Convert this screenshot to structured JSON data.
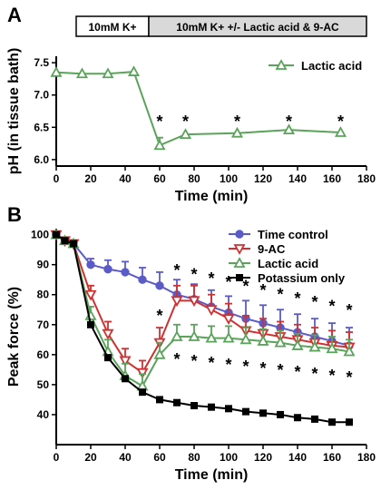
{
  "panel_labels": {
    "a": "A",
    "b": "B"
  },
  "condition_bar": {
    "left": "10mM K+",
    "right": "10mM K+  +/- Lactic acid & 9-AC"
  },
  "chart_data": [
    {
      "type": "line",
      "panel": "A",
      "xlabel": "Time (min)",
      "ylabel": "pH (in tissue bath)",
      "xlim": [
        0,
        180
      ],
      "ylim": [
        5.9,
        7.6
      ],
      "xticks": [
        0,
        20,
        40,
        60,
        80,
        100,
        120,
        140,
        160,
        180
      ],
      "yticks": [
        6.0,
        6.5,
        7.0,
        7.5
      ],
      "ytick_labels": [
        "6.0",
        "6.5",
        "7.0",
        "7.5"
      ],
      "legend_position": "top-right",
      "grid": false,
      "series": [
        {
          "name": "Lactic acid",
          "color": "#5aa35a",
          "marker": "triangle-open",
          "x": [
            0,
            15,
            30,
            45,
            60,
            75,
            105,
            135,
            165
          ],
          "y": [
            7.35,
            7.33,
            7.33,
            7.36,
            6.22,
            6.39,
            6.41,
            6.46,
            6.42
          ],
          "err": [
            0,
            0,
            0,
            0,
            0.12,
            0,
            0,
            0,
            0
          ]
        }
      ],
      "significance_x": [
        60,
        75,
        105,
        135,
        165
      ],
      "significance_mark": "*"
    },
    {
      "type": "line",
      "panel": "B",
      "xlabel": "Time (min)",
      "ylabel": "Peak force (%)",
      "xlim": [
        0,
        180
      ],
      "ylim": [
        30,
        102
      ],
      "xticks": [
        0,
        20,
        40,
        60,
        80,
        100,
        120,
        140,
        160,
        180
      ],
      "yticks": [
        40,
        50,
        60,
        70,
        80,
        90,
        100
      ],
      "legend_position": "top-right",
      "grid": false,
      "series": [
        {
          "name": "Time control",
          "color": "#5b5bc8",
          "marker": "circle-filled",
          "x": [
            0,
            5,
            10,
            20,
            30,
            40,
            50,
            60,
            70,
            80,
            90,
            100,
            110,
            120,
            130,
            140,
            150,
            160,
            170
          ],
          "y": [
            100,
            98,
            97,
            90,
            88.5,
            87.5,
            85,
            83,
            80,
            78.5,
            76,
            74,
            72,
            70.5,
            69,
            67.5,
            66,
            64.5,
            63
          ],
          "err": [
            0,
            0,
            0,
            2,
            3,
            3.5,
            4,
            4.5,
            5,
            5,
            5.5,
            5.5,
            6,
            6,
            6,
            6,
            6,
            6,
            6
          ]
        },
        {
          "name": "9-AC",
          "color": "#d03030",
          "marker": "triangle-down-open",
          "x": [
            0,
            5,
            10,
            20,
            30,
            40,
            50,
            60,
            70,
            80,
            90,
            100,
            110,
            120,
            130,
            140,
            150,
            160,
            170
          ],
          "y": [
            100,
            98,
            97,
            80,
            67,
            58,
            54,
            64,
            78,
            78,
            75,
            72,
            68,
            67,
            66,
            65,
            64,
            63,
            62.5
          ],
          "err": [
            0,
            0,
            0,
            3,
            4,
            4,
            4,
            5,
            5,
            5,
            5,
            5,
            5,
            5,
            5,
            5,
            5,
            5,
            5
          ]
        },
        {
          "name": "Lactic acid",
          "color": "#5aa35a",
          "marker": "triangle-open",
          "x": [
            0,
            5,
            10,
            20,
            30,
            40,
            50,
            60,
            70,
            80,
            90,
            100,
            110,
            120,
            130,
            140,
            150,
            160,
            170
          ],
          "y": [
            100,
            98,
            97,
            73,
            61,
            53,
            49.5,
            60,
            66,
            66,
            65.5,
            65.5,
            65,
            64.5,
            64,
            63,
            62.5,
            62,
            61
          ],
          "err": [
            0,
            0,
            0,
            3,
            4,
            4,
            4,
            4,
            4,
            4,
            4,
            4,
            4,
            4,
            4,
            4,
            4,
            4,
            4
          ]
        },
        {
          "name": "Potassium only",
          "color": "#000000",
          "marker": "square-filled",
          "x": [
            0,
            5,
            10,
            20,
            30,
            40,
            50,
            60,
            70,
            80,
            90,
            100,
            110,
            120,
            130,
            140,
            150,
            160,
            170
          ],
          "y": [
            100,
            98,
            97,
            70,
            59,
            52,
            47.5,
            45,
            44,
            43,
            42.5,
            42,
            41,
            40.5,
            40,
            39,
            38.5,
            37.5,
            37.5
          ],
          "err": [
            0,
            0,
            0,
            0,
            0,
            0,
            0,
            0,
            0,
            0,
            0,
            0,
            0,
            0,
            0,
            0,
            0,
            0,
            0
          ]
        }
      ],
      "significance_upper_x": [
        70,
        80,
        90,
        100,
        110,
        120,
        130,
        140,
        150,
        160,
        170
      ],
      "significance_upper_extra_x": [
        60
      ],
      "significance_lower_x": [
        70,
        80,
        90,
        100,
        110,
        120,
        130,
        140,
        150,
        160,
        170
      ],
      "significance_mark": "*"
    }
  ]
}
